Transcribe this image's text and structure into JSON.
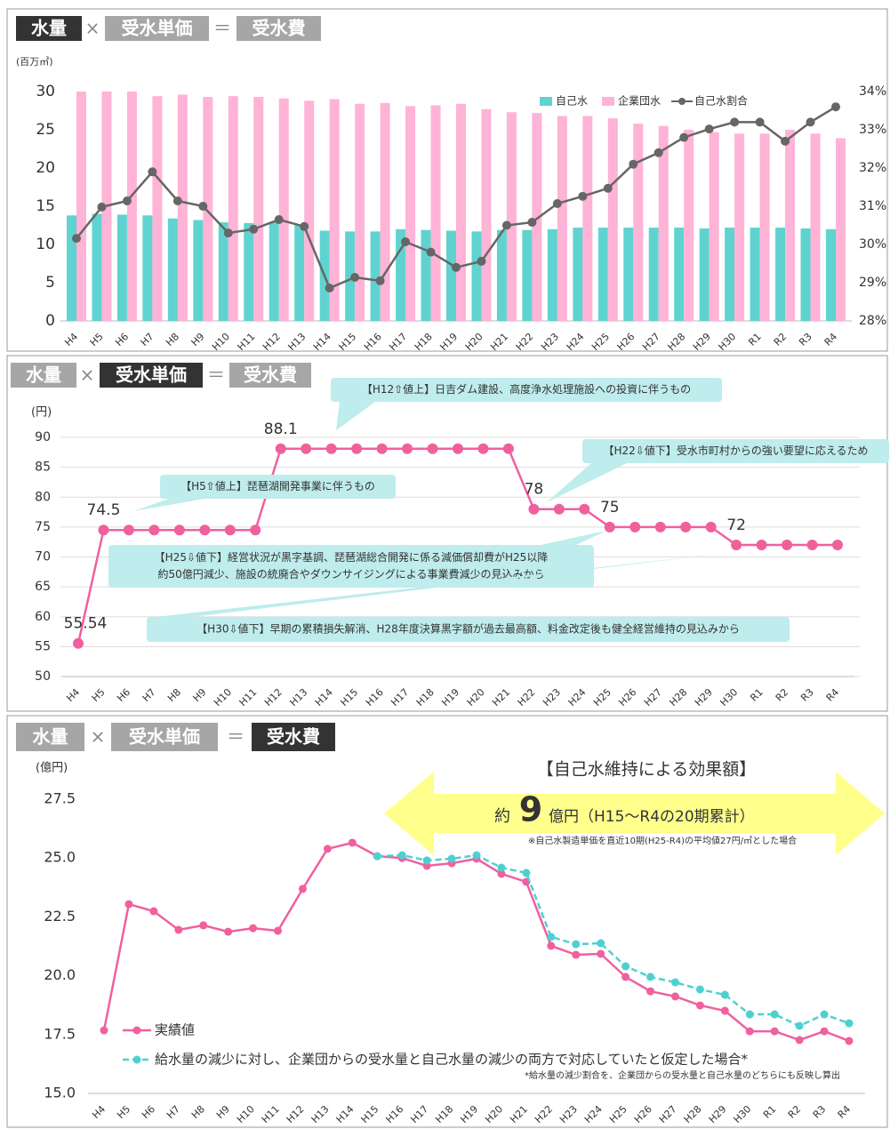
{
  "chart_data": [
    {
      "type": "bar",
      "header": {
        "terms": [
          "水量",
          "受水単価",
          "受水費"
        ],
        "ops": [
          "×",
          "＝"
        ],
        "highlight": 0
      },
      "y_label": "(百万㎥)",
      "categories": [
        "H4",
        "H5",
        "H6",
        "H7",
        "H8",
        "H9",
        "H10",
        "H11",
        "H12",
        "H13",
        "H14",
        "H15",
        "H16",
        "H17",
        "H18",
        "H19",
        "H20",
        "H21",
        "H22",
        "H23",
        "H24",
        "H25",
        "H26",
        "H27",
        "H28",
        "H29",
        "H30",
        "R1",
        "R2",
        "R3",
        "R4"
      ],
      "series": [
        {
          "name": "自己水",
          "color": "#5fd3cf",
          "type": "bar",
          "values": [
            13.8,
            14,
            13.9,
            13.8,
            13.4,
            13.2,
            12.9,
            12.8,
            12.9,
            12.5,
            11.8,
            11.7,
            11.7,
            12,
            11.9,
            11.8,
            11.7,
            11.9,
            11.9,
            12,
            12.2,
            12.2,
            12.2,
            12.2,
            12.2,
            12.1,
            12.2,
            12.2,
            12.2,
            12.1,
            12
          ]
        },
        {
          "name": "企業団水",
          "color": "#ffb3d6",
          "type": "bar",
          "values": [
            30,
            30,
            30,
            29.4,
            29.6,
            29.3,
            29.4,
            29.3,
            29.1,
            28.8,
            29,
            28.4,
            28.5,
            28.1,
            28.2,
            28.4,
            27.7,
            27.3,
            27.2,
            26.8,
            26.8,
            26.5,
            25.8,
            25.5,
            25,
            24.7,
            24.5,
            24.5,
            25,
            24.5,
            23.9
          ]
        },
        {
          "name": "自己水割合",
          "color": "#666666",
          "type": "line",
          "axis": "y2",
          "values": [
            30.16,
            30.98,
            31.14,
            31.9,
            31.14,
            31,
            30.3,
            30.4,
            30.65,
            30.47,
            28.86,
            29.14,
            29.05,
            30.07,
            29.8,
            29.4,
            29.56,
            30.5,
            30.58,
            31.07,
            31.26,
            31.47,
            32.1,
            32.4,
            32.8,
            33.02,
            33.2,
            33.2,
            32.7,
            33.2,
            33.6
          ]
        }
      ],
      "ylim": [
        0,
        30
      ],
      "yticks": [
        0,
        5,
        10,
        15,
        20,
        25,
        30
      ],
      "y2lim": [
        28,
        34
      ],
      "y2ticks": [
        {
          "value": 28,
          "label": "28%"
        },
        {
          "value": 29,
          "label": "29%"
        },
        {
          "value": 30,
          "label": "30%"
        },
        {
          "value": 31,
          "label": "31%"
        },
        {
          "value": 32,
          "label": "32%"
        },
        {
          "value": 33,
          "label": "33%"
        },
        {
          "value": 34,
          "label": "34%"
        }
      ],
      "legend": "upper right",
      "grid": false
    },
    {
      "type": "line",
      "header": {
        "terms": [
          "水量",
          "受水単価",
          "受水費"
        ],
        "ops": [
          "×",
          "＝"
        ],
        "highlight": 1
      },
      "y_label": "(円)",
      "categories": [
        "H4",
        "H5",
        "H6",
        "H7",
        "H8",
        "H9",
        "H10",
        "H11",
        "H12",
        "H13",
        "H14",
        "H15",
        "H16",
        "H17",
        "H18",
        "H19",
        "H20",
        "H21",
        "H22",
        "H23",
        "H24",
        "H25",
        "H26",
        "H27",
        "H28",
        "H29",
        "H30",
        "R1",
        "R2",
        "R3",
        "R4"
      ],
      "series": [
        {
          "color": "#f0609e",
          "values": [
            55.54,
            74.5,
            74.5,
            74.5,
            74.5,
            74.5,
            74.5,
            74.5,
            88.1,
            88.1,
            88.1,
            88.1,
            88.1,
            88.1,
            88.1,
            88.1,
            88.1,
            88.1,
            78,
            78,
            78,
            75,
            75,
            75,
            75,
            75,
            72,
            72,
            72,
            72,
            72
          ],
          "value_labels": [
            "55.54",
            "74.5",
            null,
            null,
            null,
            null,
            null,
            null,
            "88.1",
            null,
            null,
            null,
            null,
            null,
            null,
            null,
            null,
            null,
            "78",
            null,
            null,
            "75",
            null,
            null,
            null,
            null,
            "72",
            null,
            null,
            null,
            null
          ]
        }
      ],
      "ylim": [
        50,
        90
      ],
      "yticks": [
        50,
        55,
        60,
        65,
        70,
        75,
        80,
        85,
        90
      ],
      "grid": true,
      "annotations": [
        [
          "【H12⇧値上】日吉ダム建設、高度浄水処理施設への投資に伴うもの"
        ],
        [
          "【H22⇩値下】受水市町村からの強い要望に応えるため"
        ],
        [
          "【H5⇧値上】琵琶湖開発事業に伴うもの"
        ],
        [
          "【H25⇩値下】経営状況が黒字基調、琵琶湖総合開発に係る減価償却費がH25以降",
          "約50億円減少、施設の統廃合やダウンサイジングによる事業費減少の見込みから"
        ],
        [
          "【H30⇩値下】早期の累積損失解消、H28年度決算黒字額が過去最高額、料金改定後も健全経営維持の見込みから"
        ]
      ]
    },
    {
      "type": "line",
      "header": {
        "terms": [
          "水量",
          "受水単価",
          "受水費"
        ],
        "ops": [
          "×",
          "＝"
        ],
        "highlight": 2
      },
      "y_label": "(億円)",
      "categories": [
        "H4",
        "H5",
        "H6",
        "H7",
        "H8",
        "H9",
        "H10",
        "H11",
        "H12",
        "H13",
        "H14",
        "H15",
        "H16",
        "H17",
        "H18",
        "H19",
        "H20",
        "H21",
        "H22",
        "H23",
        "H24",
        "H25",
        "H26",
        "H27",
        "H28",
        "H29",
        "H30",
        "R1",
        "R2",
        "R3",
        "R4"
      ],
      "series": [
        {
          "name": "実績値",
          "color": "#f0609e",
          "dash": false,
          "values": [
            17.68,
            23.04,
            22.74,
            21.95,
            22.14,
            21.87,
            22.02,
            21.91,
            23.69,
            25.39,
            25.65,
            25.08,
            25,
            24.67,
            24.78,
            24.97,
            24.33,
            23.99,
            21.27,
            20.89,
            20.93,
            19.95,
            19.34,
            19.12,
            18.74,
            18.51,
            17.64,
            17.64,
            17.27,
            17.64,
            17.23
          ]
        },
        {
          "name": "給水量の減少に対し、企業団からの受水量と自己水量の減少の両方で対応していたと仮定した場合*",
          "color": "#4fd0d0",
          "dash": true,
          "values": [
            null,
            null,
            null,
            null,
            null,
            null,
            null,
            null,
            null,
            null,
            null,
            25.08,
            25.12,
            24.9,
            24.97,
            25.12,
            24.59,
            24.37,
            21.65,
            21.34,
            21.38,
            20.4,
            19.95,
            19.72,
            19.42,
            19.19,
            18.36,
            18.36,
            17.87,
            18.36,
            17.98
          ]
        }
      ],
      "ylim": [
        15,
        27.5
      ],
      "yticks": [
        {
          "value": 15,
          "label": "15.0"
        },
        {
          "value": 17.5,
          "label": "17.5"
        },
        {
          "value": 20,
          "label": "20.0"
        },
        {
          "value": 22.5,
          "label": "22.5"
        },
        {
          "value": 25,
          "label": "25.0"
        },
        {
          "value": 27.5,
          "label": "27.5"
        }
      ],
      "legend": "lower left",
      "grid": false,
      "effect": {
        "title": "【自己水維持による効果額】",
        "prefix": "約",
        "amount": "9",
        "suffix": "億円（H15〜R4の20期累計）",
        "note": "※自己水製造単価を直近10期(H25-R4)の平均値27円/㎥とした場合"
      },
      "footnote": "*給水量の減少割合を、企業団からの受水量と自己水量のどちらにも反映し算出"
    }
  ]
}
